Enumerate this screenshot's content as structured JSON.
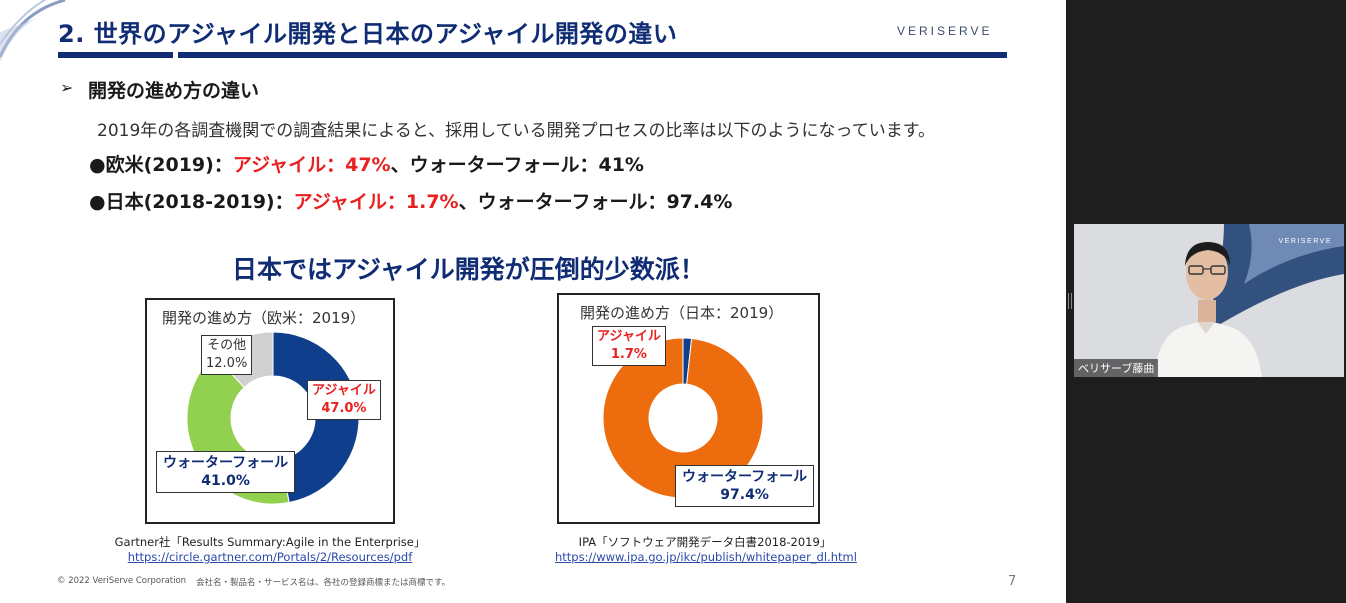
{
  "slide": {
    "title": "2. 世界のアジャイル開発と日本のアジャイル開発の違い",
    "brand": "VERISERVE",
    "section": {
      "arrow": "➢",
      "heading": "開発の進め方の違い"
    },
    "intro": "2019年の各調査機関での調査結果によると、採用している開発プロセスの比率は以下のようになっています。",
    "bullets": [
      {
        "prefix": "●欧米(2019)：",
        "agile": "アジャイル：47%",
        "rest": "、ウォーターフォール：41%"
      },
      {
        "prefix": "●日本(2018-2019)：",
        "agile": "アジャイル：1.7%",
        "rest": "、ウォーターフォール：97.4%"
      }
    ],
    "claim": "日本ではアジャイル開発が圧倒的少数派！",
    "footer": {
      "copyright": "© 2022 VeriServe Corporation",
      "note": "会社名・製品名・サービス名は、各社の登録商標または商標です。",
      "page_number": "7"
    }
  },
  "chart_data": [
    {
      "type": "pie",
      "title": "開発の進め方（欧米：2019）",
      "categories": [
        "アジャイル",
        "ウォーターフォール",
        "その他"
      ],
      "values": [
        47.0,
        41.0,
        12.0
      ],
      "labels": [
        {
          "name": "アジャイル",
          "value": "47.0%"
        },
        {
          "name": "ウォーターフォール",
          "value": "41.0%"
        },
        {
          "name": "その他",
          "value": "12.0%"
        }
      ],
      "colors": [
        "#0f3f8c",
        "#92d050",
        "#d0d0d0"
      ],
      "source_text": "Gartner社「Results Summary:Agile in the Enterprise」",
      "source_url": "https://circle.gartner.com/Portals/2/Resources/pdf"
    },
    {
      "type": "pie",
      "title": "開発の進め方（日本：2019）",
      "categories": [
        "アジャイル",
        "ウォーターフォール"
      ],
      "values": [
        1.7,
        97.4
      ],
      "labels": [
        {
          "name": "アジャイル",
          "value": "1.7%"
        },
        {
          "name": "ウォーターフォール",
          "value": "97.4%"
        }
      ],
      "colors": [
        "#0f3f8c",
        "#ed6d0e"
      ],
      "source_text": "IPA「ソフトウェア開発データ白書2018-2019」",
      "source_url": "https://www.ipa.go.jp/ikc/publish/whitepaper_dl.html"
    }
  ],
  "video": {
    "participant_name": "ベリサーブ藤曲",
    "brand": "VERISERVE"
  }
}
